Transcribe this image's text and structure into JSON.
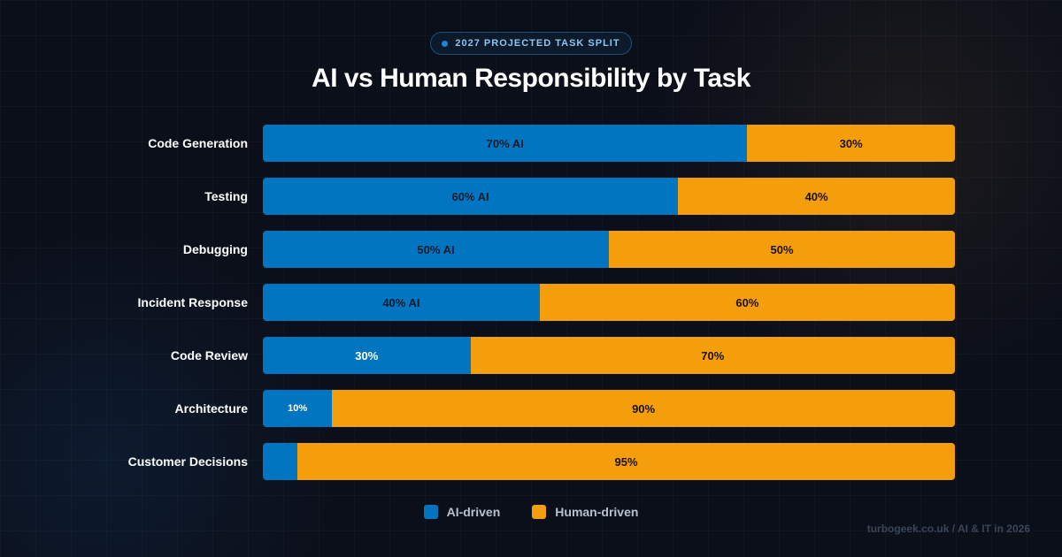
{
  "badge": {
    "text": "2027 PROJECTED TASK SPLIT",
    "icon": "dot-icon"
  },
  "title": "AI vs Human Responsibility by Task",
  "footer": "turbogeek.co.uk / AI & IT in 2026",
  "colors": {
    "ai": "#0275c0",
    "human": "#f59e0b",
    "background": "#0b0f1a"
  },
  "legend": [
    {
      "name": "AI-driven",
      "color": "#0275c0"
    },
    {
      "name": "Human-driven",
      "color": "#f59e0b"
    }
  ],
  "chart_data": {
    "type": "bar",
    "stacked": true,
    "orientation": "horizontal",
    "title": "AI vs Human Responsibility by Task",
    "categories": [
      "Code Generation",
      "Testing",
      "Debugging",
      "Incident Response",
      "Code Review",
      "Architecture",
      "Customer Decisions"
    ],
    "series": [
      {
        "name": "AI-driven",
        "values": [
          70,
          60,
          50,
          40,
          30,
          10,
          5
        ],
        "labels": [
          "70% AI",
          "60% AI",
          "50% AI",
          "40% AI",
          "30%",
          "10%",
          ""
        ]
      },
      {
        "name": "Human-driven",
        "values": [
          30,
          40,
          50,
          60,
          70,
          90,
          95
        ],
        "labels": [
          "30%",
          "40%",
          "50%",
          "60%",
          "70%",
          "90%",
          "95%"
        ]
      }
    ],
    "xlim": [
      0,
      100
    ],
    "grid": false,
    "legend_position": "bottom-center"
  }
}
